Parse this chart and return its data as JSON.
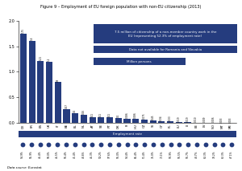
{
  "title": "Figure 9 – Employment of EU foreign population with non-EU citizenship (2013)",
  "categories": [
    "DE",
    "FR",
    "ES",
    "UK",
    "IT",
    "BE",
    "EL",
    "NL",
    "AT",
    "SE",
    "PT",
    "DK",
    "FI",
    "HU",
    "CZ",
    "SI",
    "CY",
    "PL",
    "LU",
    "LI",
    "EE",
    "LV",
    "NO",
    "MT",
    "ME"
  ],
  "bar_values": [
    1.75,
    1.6,
    1.21,
    1.2,
    0.8,
    0.27,
    0.2,
    0.16,
    0.11,
    0.11,
    0.11,
    0.1,
    0.086,
    0.086,
    0.075,
    0.045,
    0.034,
    0.033,
    0.019,
    0.019,
    0.01,
    0.009,
    0.006,
    0.003,
    0.003
  ],
  "bar_labels": [
    "1.75",
    "1.6",
    "1.21",
    "1.2",
    "0.8",
    "0.27",
    "0.2",
    "0.16",
    "0.11",
    "0.11",
    "0.11",
    "0.1",
    "0.086",
    "0.086",
    "0.075",
    "0.045",
    "0.034",
    "0.033",
    "0.019",
    "0.019",
    "0.010",
    "0.009",
    "0.006",
    "0.003",
    "0.003"
  ],
  "employment_rates": [
    "54.9%",
    "55.9%",
    "46.4%",
    "58.0%",
    "46.5%",
    "56.4%",
    "45.4%",
    "48.8%",
    "46.3%",
    "59.2%",
    "97.6%",
    "56.0%",
    "54.4%",
    "65.4%",
    "51.4%",
    "76.0%",
    "73.1%",
    "50.9%",
    "56.5%",
    "56.7%",
    "48.7%",
    "63.3%",
    "70.2%",
    "62.3%",
    "47.1%"
  ],
  "bar_color": "#253C7E",
  "bubble_color": "#253C7E",
  "box_color": "#253C7E",
  "box1_text": "7.5 million of citizenship of a non-member country work in the\nEU (representing 52.3% of employment rate)",
  "box2_text": "Data not available for Romania and Slovakia",
  "box3_text": "Million persons",
  "box4_text": "Employment rate",
  "datasource": "Data source: Eurostat.",
  "ylim": [
    0,
    2.0
  ],
  "yticks": [
    0,
    0.5,
    1.0,
    1.5,
    2.0
  ],
  "bg_color": "#FFFFFF"
}
